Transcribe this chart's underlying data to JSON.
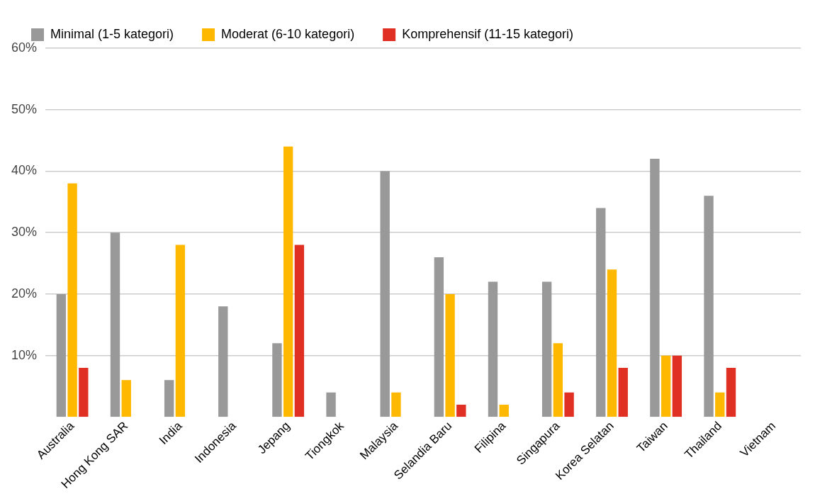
{
  "chart_data": {
    "type": "bar",
    "categories": [
      "Australia",
      "Hong Kong SAR",
      "India",
      "Indonesia",
      "Jepang",
      "Tiongkok",
      "Malaysia",
      "Selandia Baru",
      "Filipina",
      "Singapura",
      "Korea Selatan",
      "Taiwan",
      "Thailand",
      "Vietnam"
    ],
    "series": [
      {
        "name": "Minimal (1-5 kategori)",
        "color": "#999999",
        "values": [
          20,
          30,
          6,
          18,
          12,
          4,
          40,
          26,
          22,
          22,
          34,
          42,
          36,
          0
        ]
      },
      {
        "name": "Moderat (6-10 kategori)",
        "color": "#ffb800",
        "values": [
          38,
          6,
          28,
          0,
          44,
          0,
          4,
          20,
          2,
          12,
          24,
          10,
          4,
          0
        ]
      },
      {
        "name": "Komprehensif (11-15 kategori)",
        "color": "#e03024",
        "values": [
          8,
          0,
          0,
          0,
          28,
          0,
          0,
          2,
          0,
          4,
          8,
          10,
          8,
          0
        ]
      }
    ],
    "ylim": [
      0,
      60
    ],
    "yticks": [
      {
        "value": 10,
        "label": "10%"
      },
      {
        "value": 20,
        "label": "20%"
      },
      {
        "value": 30,
        "label": "30%"
      },
      {
        "value": 40,
        "label": "40%"
      },
      {
        "value": 50,
        "label": "50%"
      },
      {
        "value": 60,
        "label": "60%"
      }
    ],
    "grid": "y",
    "legend": "top left"
  }
}
